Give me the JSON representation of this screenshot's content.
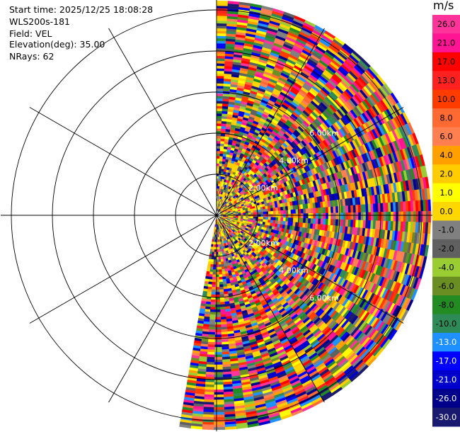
{
  "info": {
    "start_time": "Start time: 2025/12/25 18:08:28",
    "instrument": "WLS200s-181",
    "field": "Field: VEL",
    "elevation": "Elevation(deg): 35.00",
    "nrays": "NRays: 62"
  },
  "chart_data": {
    "type": "ppi_polar",
    "field": "VEL",
    "units": "m/s",
    "elevation_deg": 35.0,
    "nrays": 62,
    "azimuth_start_deg": 0,
    "azimuth_end_deg": 190,
    "range_rings_labels": [
      "2.00km",
      "4.00km",
      "6.00km"
    ],
    "note": "Velocity field appears largely noise-dominated; individual gate values not recoverable.",
    "colorbar": {
      "ticks": [
        "26.0",
        "21.0",
        "17.0",
        "13.0",
        "10.0",
        "8.0",
        "6.0",
        "4.0",
        "2.0",
        "1.0",
        "0.0",
        "-1.0",
        "-2.0",
        "-4.0",
        "-6.0",
        "-8.0",
        "-10.0",
        "-13.0",
        "-17.0",
        "-21.0",
        "-26.0",
        "-30.0"
      ],
      "colors": [
        "#ff3399",
        "#ff1493",
        "#ff0000",
        "#ff2020",
        "#ff3c00",
        "#ff6a33",
        "#ff7f50",
        "#ff9f00",
        "#ffcc00",
        "#ffff00",
        "#ffd700",
        "#808080",
        "#606060",
        "#9acd32",
        "#6b8e23",
        "#228b22",
        "#2e8b57",
        "#1e90ff",
        "#0000ff",
        "#0000cc",
        "#00008b",
        "#191970"
      ]
    }
  }
}
